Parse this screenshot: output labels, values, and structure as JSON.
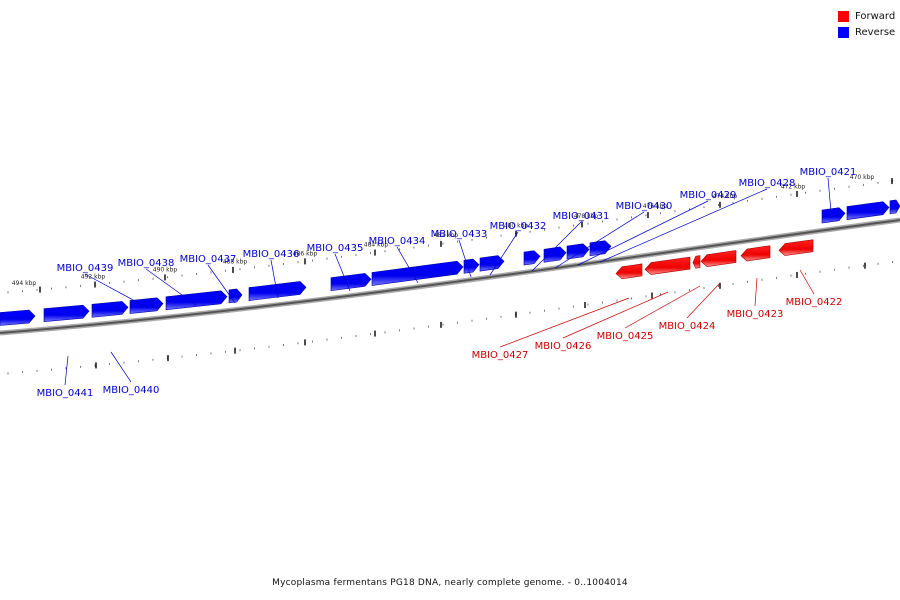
{
  "legend": {
    "forward_label": "Forward",
    "reverse_label": "Reverse",
    "forward_color": "#ff0000",
    "reverse_color": "#0000ff"
  },
  "caption": "Mycoplasma fermentans PG18 DNA, nearly complete genome. - 0..1004014",
  "kbp_labels": [
    "470 kbp",
    "472 kbp",
    "474 kbp",
    "476 kbp",
    "478 kbp",
    "480 kbp",
    "482 kbp",
    "484 kbp",
    "486 kbp",
    "488 kbp",
    "490 kbp",
    "492 kbp",
    "494 kbp"
  ],
  "genes": [
    {
      "label": "MBIO_0421",
      "strand": "reverse"
    },
    {
      "label": "MBIO_0422",
      "strand": "forward"
    },
    {
      "label": "MBIO_0423",
      "strand": "forward"
    },
    {
      "label": "MBIO_0424",
      "strand": "forward"
    },
    {
      "label": "MBIO_0425",
      "strand": "forward"
    },
    {
      "label": "MBIO_0426",
      "strand": "forward"
    },
    {
      "label": "MBIO_0427",
      "strand": "forward"
    },
    {
      "label": "MBIO_0428",
      "strand": "reverse"
    },
    {
      "label": "MBIO_0429",
      "strand": "reverse"
    },
    {
      "label": "MBIO_0430",
      "strand": "reverse"
    },
    {
      "label": "MBIO_0431",
      "strand": "reverse"
    },
    {
      "label": "MBIO_0432",
      "strand": "reverse"
    },
    {
      "label": "MBIO_0433",
      "strand": "reverse"
    },
    {
      "label": "MBIO_0434",
      "strand": "reverse"
    },
    {
      "label": "MBIO_0435",
      "strand": "reverse"
    },
    {
      "label": "MBIO_0436",
      "strand": "reverse"
    },
    {
      "label": "MBIO_0437",
      "strand": "reverse"
    },
    {
      "label": "MBIO_0438",
      "strand": "reverse"
    },
    {
      "label": "MBIO_0439",
      "strand": "reverse"
    },
    {
      "label": "MBIO_0440",
      "strand": "reverse"
    },
    {
      "label": "MBIO_0441",
      "strand": "reverse"
    }
  ]
}
